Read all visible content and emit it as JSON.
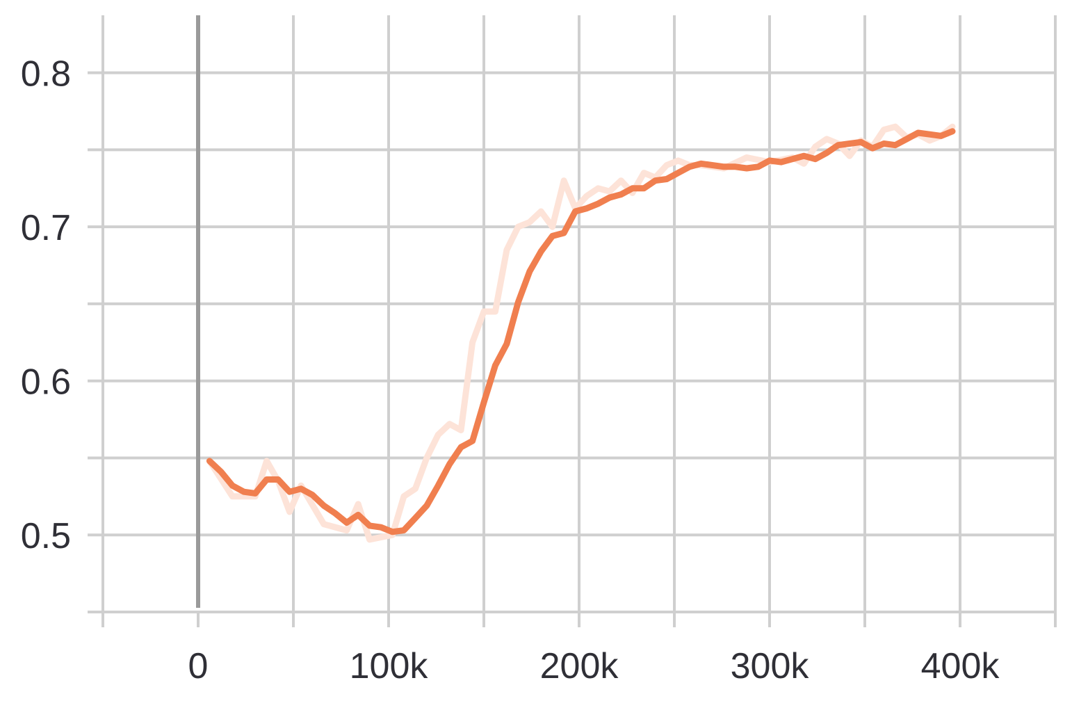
{
  "chart_data": {
    "type": "line",
    "title": "",
    "xlabel": "",
    "ylabel": "",
    "xlim": [
      -50000,
      450000
    ],
    "ylim": [
      0.45,
      0.84
    ],
    "x_ticks": [
      {
        "value": 0,
        "label": "0"
      },
      {
        "value": 100000,
        "label": "100k"
      },
      {
        "value": 200000,
        "label": "200k"
      },
      {
        "value": 300000,
        "label": "300k"
      },
      {
        "value": 400000,
        "label": "400k"
      }
    ],
    "x_minor_ticks": [
      -50000,
      50000,
      150000,
      250000,
      350000,
      450000
    ],
    "y_ticks": [
      {
        "value": 0.5,
        "label": "0.5"
      },
      {
        "value": 0.6,
        "label": "0.6"
      },
      {
        "value": 0.7,
        "label": "0.7"
      },
      {
        "value": 0.8,
        "label": "0.8"
      }
    ],
    "y_minor_ticks": [
      0.45,
      0.55,
      0.65,
      0.75
    ],
    "grid": true,
    "colors": {
      "smoothed": "#f07f4f",
      "raw": "#fde3d8",
      "zero_line": "#9a9a9a",
      "grid": "#cfcfcf"
    },
    "series": [
      {
        "role": "raw",
        "x": [
          6000,
          18000,
          30000,
          36000,
          42000,
          48000,
          54000,
          66000,
          78000,
          84000,
          90000,
          102000,
          108000,
          114000,
          120000,
          126000,
          132000,
          138000,
          144000,
          150000,
          156000,
          162000,
          168000,
          174000,
          180000,
          186000,
          192000,
          198000,
          204000,
          210000,
          216000,
          222000,
          228000,
          234000,
          240000,
          246000,
          252000,
          258000,
          264000,
          276000,
          288000,
          300000,
          312000,
          318000,
          324000,
          330000,
          336000,
          342000,
          348000,
          354000,
          360000,
          366000,
          372000,
          378000,
          384000,
          390000,
          396000
        ],
        "y": [
          0.548,
          0.525,
          0.525,
          0.548,
          0.535,
          0.515,
          0.532,
          0.507,
          0.503,
          0.52,
          0.497,
          0.5,
          0.525,
          0.53,
          0.55,
          0.565,
          0.572,
          0.568,
          0.625,
          0.645,
          0.645,
          0.685,
          0.7,
          0.703,
          0.71,
          0.7,
          0.73,
          0.712,
          0.72,
          0.725,
          0.723,
          0.73,
          0.722,
          0.735,
          0.732,
          0.74,
          0.743,
          0.74,
          0.74,
          0.738,
          0.745,
          0.742,
          0.745,
          0.741,
          0.752,
          0.757,
          0.754,
          0.746,
          0.756,
          0.752,
          0.763,
          0.765,
          0.758,
          0.76,
          0.756,
          0.759,
          0.765
        ]
      },
      {
        "role": "smoothed",
        "x": [
          6000,
          12000,
          18000,
          24000,
          30000,
          36000,
          42000,
          48000,
          54000,
          60000,
          66000,
          72000,
          78000,
          84000,
          90000,
          96000,
          102000,
          108000,
          114000,
          120000,
          126000,
          132000,
          138000,
          144000,
          150000,
          156000,
          162000,
          168000,
          174000,
          180000,
          186000,
          192000,
          198000,
          204000,
          210000,
          216000,
          222000,
          228000,
          234000,
          240000,
          246000,
          252000,
          258000,
          264000,
          276000,
          282000,
          288000,
          294000,
          300000,
          306000,
          312000,
          318000,
          324000,
          330000,
          336000,
          342000,
          348000,
          354000,
          360000,
          366000,
          372000,
          378000,
          384000,
          390000,
          396000
        ],
        "y": [
          0.548,
          0.541,
          0.532,
          0.528,
          0.527,
          0.536,
          0.536,
          0.528,
          0.53,
          0.526,
          0.519,
          0.514,
          0.508,
          0.513,
          0.506,
          0.505,
          0.502,
          0.503,
          0.511,
          0.519,
          0.532,
          0.546,
          0.557,
          0.561,
          0.586,
          0.61,
          0.624,
          0.651,
          0.671,
          0.684,
          0.694,
          0.696,
          0.71,
          0.712,
          0.715,
          0.719,
          0.721,
          0.725,
          0.725,
          0.73,
          0.731,
          0.735,
          0.739,
          0.741,
          0.739,
          0.739,
          0.738,
          0.739,
          0.743,
          0.742,
          0.744,
          0.746,
          0.744,
          0.748,
          0.753,
          0.754,
          0.755,
          0.751,
          0.754,
          0.753,
          0.757,
          0.761,
          0.76,
          0.759,
          0.762
        ]
      }
    ]
  }
}
